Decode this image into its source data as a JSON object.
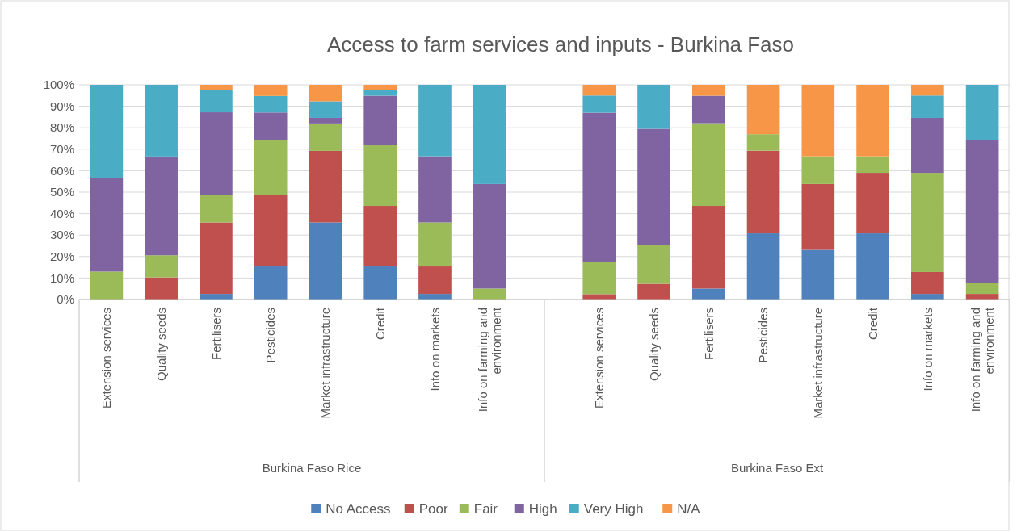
{
  "chart_data": {
    "type": "bar",
    "title": "Access to farm services and inputs - Burkina Faso",
    "stacked": true,
    "categories": [
      "Extension services",
      "Quality seeds",
      "Fertilisers",
      "Pesticides",
      "Market infrastructure",
      "Credit",
      "Info on markets",
      "Info on farming and environment",
      null,
      "Extension services",
      "Quality seeds",
      "Fertilisers",
      "Pesticides",
      "Market infrastructure",
      "Credit",
      "Info on markets",
      "Info on farming and environment"
    ],
    "series": [
      {
        "name": "No Access",
        "color": "#4f81bd",
        "values": [
          0,
          0,
          2.6,
          15.4,
          35.9,
          15.4,
          2.6,
          0,
          null,
          0,
          0,
          5.1,
          30.8,
          23.1,
          30.8,
          2.6,
          0
        ]
      },
      {
        "name": "Poor",
        "color": "#c0504d",
        "values": [
          0,
          10.3,
          33.3,
          33.3,
          33.3,
          28.2,
          12.8,
          0,
          null,
          2.5,
          7.3,
          38.5,
          38.5,
          30.7,
          28.2,
          10.2,
          2.6
        ]
      },
      {
        "name": "Fair",
        "color": "#9bbb59",
        "values": [
          13,
          10.3,
          12.8,
          25.6,
          12.8,
          28.2,
          20.5,
          5.1,
          null,
          15,
          18.2,
          38.5,
          7.7,
          12.9,
          7.7,
          46.2,
          5.1
        ]
      },
      {
        "name": "High",
        "color": "#8064a2",
        "values": [
          43.5,
          46,
          38.5,
          12.8,
          2.6,
          23.1,
          30.8,
          48.7,
          null,
          69.5,
          54,
          12.8,
          0,
          0,
          0,
          25.6,
          66.7
        ]
      },
      {
        "name": "Very High",
        "color": "#4bacc6",
        "values": [
          43.5,
          33.4,
          10.3,
          7.7,
          7.7,
          2.6,
          33.3,
          46.2,
          null,
          8,
          20.5,
          0,
          0,
          0,
          0,
          10.4,
          25.6
        ]
      },
      {
        "name": "N/A",
        "color": "#f79646",
        "values": [
          0,
          0,
          2.5,
          5.2,
          7.7,
          2.5,
          0,
          0,
          null,
          5,
          0,
          5.1,
          23,
          33.3,
          33.3,
          5,
          0
        ]
      }
    ],
    "ylim": [
      0,
      100
    ],
    "yticks": [
      {
        "value": 0,
        "label": "0%"
      },
      {
        "value": 10,
        "label": "10%"
      },
      {
        "value": 20,
        "label": "20%"
      },
      {
        "value": 30,
        "label": "30%"
      },
      {
        "value": 40,
        "label": "40%"
      },
      {
        "value": 50,
        "label": "50%"
      },
      {
        "value": 60,
        "label": "60%"
      },
      {
        "value": 70,
        "label": "70%"
      },
      {
        "value": 80,
        "label": "80%"
      },
      {
        "value": 90,
        "label": "90%"
      },
      {
        "value": 100,
        "label": "100%"
      }
    ],
    "annotations": [
      "Burkina Faso Rice",
      "Burkina Faso Ext"
    ],
    "grid": "y",
    "legend": "bottom"
  }
}
